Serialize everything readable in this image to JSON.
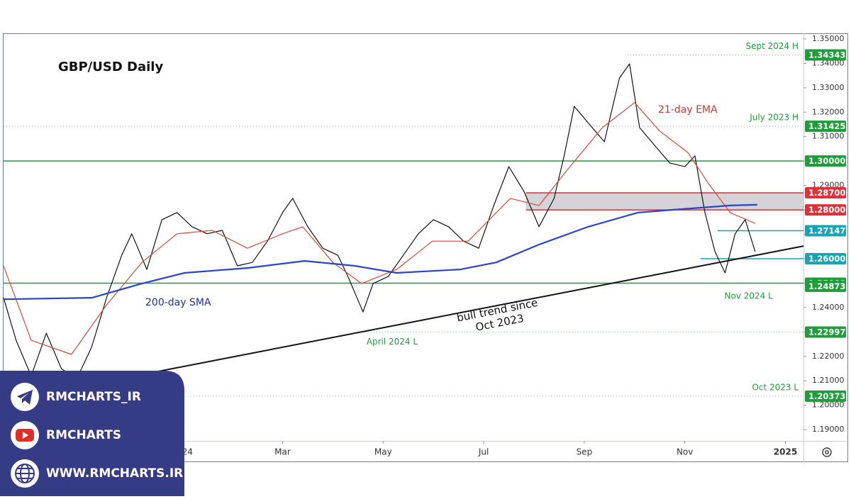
{
  "chart_data": {
    "type": "line",
    "title": "GBP/USD Daily",
    "xlim": [
      -1.55,
      14.36
    ],
    "xticks": [
      {
        "value": 0,
        "label": "Nov"
      },
      {
        "value": 2,
        "label": "2024"
      },
      {
        "value": 4,
        "label": "Mar"
      },
      {
        "value": 6,
        "label": "May"
      },
      {
        "value": 8,
        "label": "Jul"
      },
      {
        "value": 10,
        "label": "Sep"
      },
      {
        "value": 12,
        "label": "Nov"
      },
      {
        "value": 14,
        "label": "2025"
      }
    ],
    "ylim": [
      1.1854,
      1.3523
    ],
    "yticks": [
      {
        "value": 1.19,
        "label": "1.19000"
      },
      {
        "value": 1.2,
        "label": "1.20000"
      },
      {
        "value": 1.21,
        "label": "1.21000"
      },
      {
        "value": 1.22,
        "label": "1.22000"
      },
      {
        "value": 1.23,
        "label": "1.23000"
      },
      {
        "value": 1.24,
        "label": "1.24000"
      },
      {
        "value": 1.25,
        "label": "1.25000"
      },
      {
        "value": 1.26,
        "label": "1.26000"
      },
      {
        "value": 1.27,
        "label": "1.27000"
      },
      {
        "value": 1.28,
        "label": "1.28000"
      },
      {
        "value": 1.29,
        "label": "1.29000"
      },
      {
        "value": 1.3,
        "label": "1.30000"
      },
      {
        "value": 1.31,
        "label": "1.31000"
      },
      {
        "value": 1.32,
        "label": "1.32000"
      },
      {
        "value": 1.33,
        "label": "1.33000"
      },
      {
        "value": 1.34,
        "label": "1.34000"
      },
      {
        "value": 1.35,
        "label": "1.35000"
      }
    ],
    "series": [
      {
        "color": "#111111",
        "x": [
          -1.55,
          -1.3,
          -1.0,
          -0.7,
          -0.4,
          -0.1,
          0.2,
          0.5,
          0.8,
          1.0,
          1.3,
          1.6,
          1.9,
          2.2,
          2.5,
          2.8,
          3.1,
          3.4,
          3.7,
          4.0,
          4.2,
          4.5,
          4.8,
          5.1,
          5.3,
          5.6,
          5.8,
          6.1,
          6.4,
          6.7,
          7.0,
          7.3,
          7.6,
          7.9,
          8.2,
          8.5,
          8.8,
          9.1,
          9.4,
          9.6,
          9.8,
          10.1,
          10.4,
          10.7,
          10.9,
          11.1,
          11.4,
          11.7,
          12.0,
          12.2,
          12.4,
          12.6,
          12.8,
          13.0,
          13.2,
          13.4
        ],
        "values": [
          1.244,
          1.2266,
          1.212,
          1.2295,
          1.215,
          1.2106,
          1.2237,
          1.244,
          1.2614,
          1.2702,
          1.2556,
          1.276,
          1.2789,
          1.2731,
          1.2702,
          1.2716,
          1.2571,
          1.2585,
          1.2672,
          1.2789,
          1.2847,
          1.2731,
          1.2643,
          1.2614,
          1.2527,
          1.2382,
          1.2498,
          1.2527,
          1.2614,
          1.2702,
          1.276,
          1.2731,
          1.2672,
          1.2643,
          1.2818,
          1.2977,
          1.2876,
          1.2731,
          1.2847,
          1.3021,
          1.3224,
          1.3151,
          1.3079,
          1.334,
          1.3398,
          1.3137,
          1.3064,
          1.2992,
          1.2977,
          1.3021,
          1.2789,
          1.2629,
          1.2542,
          1.2702,
          1.276,
          1.2629
        ]
      },
      {
        "color": "#e0453f",
        "x": [
          -1.55,
          -1.0,
          -0.2,
          0.5,
          1.2,
          1.9,
          2.6,
          3.3,
          4.0,
          4.4,
          5.0,
          5.57,
          6.27,
          6.98,
          7.69,
          8.53,
          9.1,
          9.66,
          10.36,
          11.0,
          11.5,
          12.06,
          12.48,
          12.9,
          13.4
        ],
        "values": [
          1.2571,
          1.2266,
          1.2208,
          1.2411,
          1.2585,
          1.2702,
          1.2716,
          1.2643,
          1.2702,
          1.2731,
          1.2585,
          1.2498,
          1.2556,
          1.2672,
          1.2672,
          1.2847,
          1.2818,
          1.2963,
          1.3137,
          1.3239,
          1.3123,
          1.3035,
          1.2905,
          1.2789,
          1.2745
        ]
      },
      {
        "color": "#2a45c8",
        "x": [
          -1.55,
          0.21,
          1.2,
          2.05,
          3.3,
          4.44,
          5.43,
          6.27,
          7.54,
          8.25,
          9.1,
          10.08,
          11.07,
          11.92,
          12.9,
          13.44
        ],
        "values": [
          1.2434,
          1.244,
          1.2498,
          1.2542,
          1.2562,
          1.2591,
          1.2571,
          1.2542,
          1.2556,
          1.2585,
          1.2658,
          1.2731,
          1.2789,
          1.2803,
          1.2818,
          1.2821
        ]
      }
    ],
    "trendline": {
      "x": [
        -0.21,
        14.36
      ],
      "values": [
        1.2069,
        1.2652
      ],
      "color": "#111111"
    },
    "zone": {
      "ylim": [
        1.28,
        1.287
      ],
      "from": 8.84,
      "color": "#d4d4d8"
    },
    "levels": [
      {
        "value": 1.34343,
        "label": "1.34343",
        "color": "#1f9d3a",
        "style": "dotted",
        "from": 10.86,
        "note": "Sept 2024 H"
      },
      {
        "value": 1.31425,
        "label": "1.31425",
        "color": "#1f9d3a",
        "style": "dotted",
        "from": -1.55,
        "note": "July 2023 H"
      },
      {
        "value": 1.3,
        "label": "1.30000",
        "color": "#1f9d3a",
        "style": "solid",
        "from": -1.55
      },
      {
        "value": 1.287,
        "label": "1.28700",
        "color": "#e0303a",
        "style": "solid",
        "from": 8.84
      },
      {
        "value": 1.28,
        "label": "1.28000",
        "color": "#e0303a",
        "style": "solid",
        "from": 8.84
      },
      {
        "value": 1.27147,
        "label": "1.27147",
        "color": "#1aa3b0",
        "style": "solid",
        "from": 12.65
      },
      {
        "value": 1.26,
        "label": "1.26000",
        "color": "#1aa3b0",
        "style": "solid",
        "from": 12.31
      },
      {
        "value": 1.25,
        "label": "1.25000",
        "color": "#1f9d3a",
        "style": "solid",
        "from": -1.55
      },
      {
        "value": 1.24873,
        "label": "1.24873",
        "color": "#1f9d3a",
        "style": "none",
        "from": 12.76,
        "note": "Nov 2024 L"
      },
      {
        "value": 1.22997,
        "label": "1.22997",
        "color": "#1f9d3a",
        "style": "dotted",
        "from": 5.64,
        "note": "April 2024 L"
      },
      {
        "value": 1.20373,
        "label": "1.20373",
        "color": "#1f9d3a",
        "style": "dotted",
        "from": -1.55,
        "note": "Oct 2023 L"
      }
    ],
    "annotations": {
      "ema": "21-day EMA",
      "sma": "200-day SMA",
      "trend_1": "bull trend since",
      "trend_2": "Oct 2023"
    }
  },
  "watermark": {
    "telegram": "RMCHARTS_IR",
    "youtube": "RMCHARTS",
    "website": "WWW.RMCHARTS.IR"
  }
}
